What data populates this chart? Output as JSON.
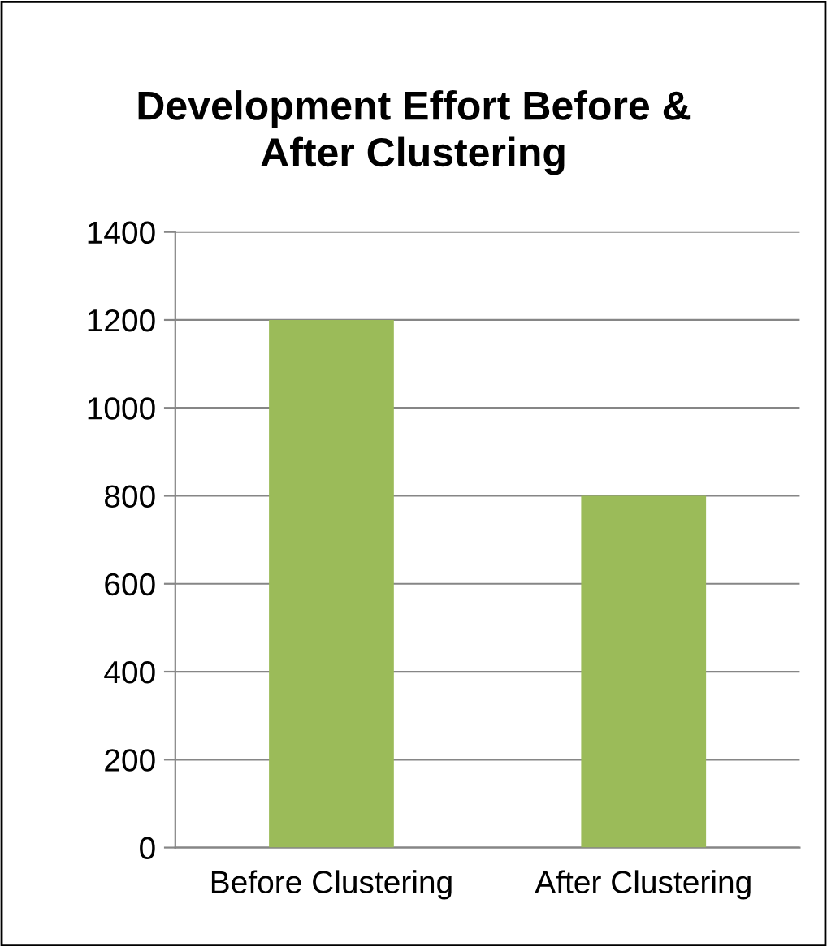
{
  "chart_data": {
    "type": "bar",
    "title": "Development Effort Before &\nAfter Clustering",
    "categories": [
      "Before Clustering",
      "After Clustering"
    ],
    "values": [
      1200,
      800
    ],
    "color": "#9bbb59",
    "ylim": [
      0,
      1400
    ],
    "yticks": [
      0,
      200,
      400,
      600,
      800,
      1000,
      1200,
      1400
    ],
    "grid": "y"
  }
}
